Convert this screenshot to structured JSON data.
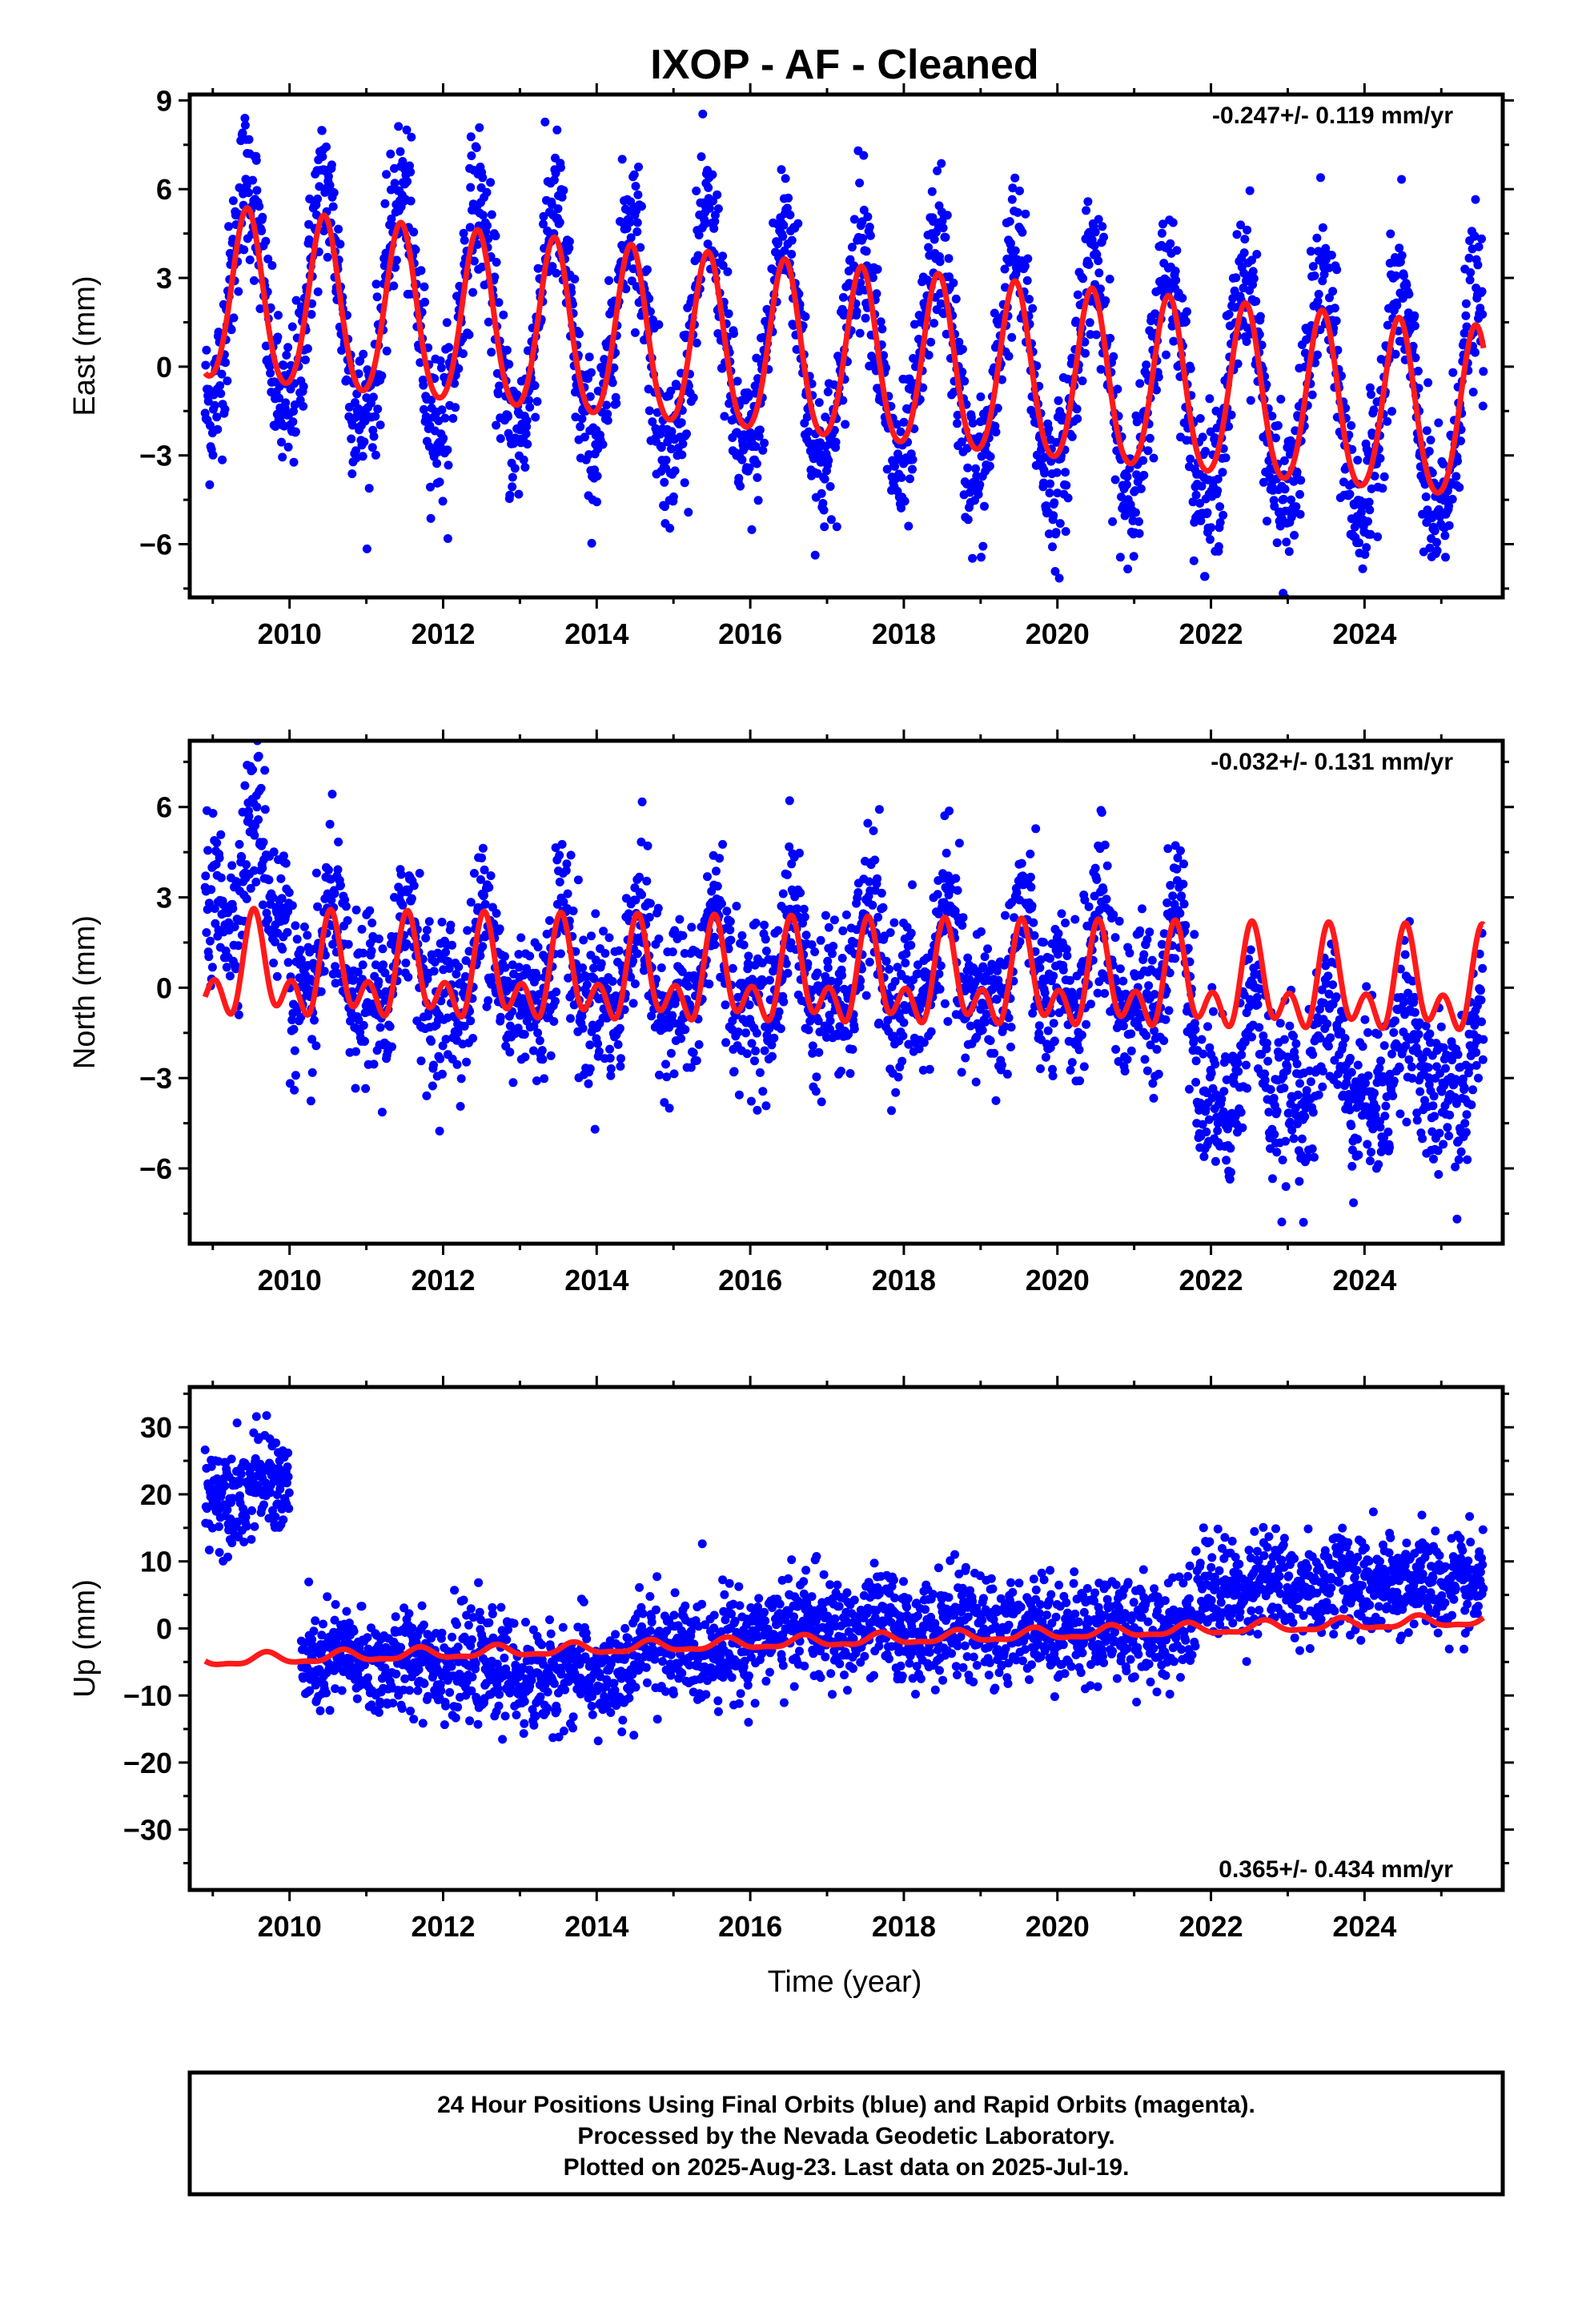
{
  "title": "IXOP  - AF - Cleaned",
  "colors": {
    "points": "#0000ff",
    "fit": "#ff1a1a",
    "frame": "#000000"
  },
  "chart_data": [
    {
      "type": "scatter",
      "ylabel": "East (mm)",
      "rate_label": "-0.247+/- 0.119 mm/yr",
      "xlim": [
        2008.7,
        2025.8
      ],
      "ylim": [
        -7.8,
        9.2
      ],
      "xticks": [
        "2010",
        "2012",
        "2014",
        "2016",
        "2018",
        "2020",
        "2022",
        "2024"
      ],
      "yticks": [
        "9",
        "6",
        "3",
        "0",
        "−3",
        "−6"
      ],
      "ytick_values": [
        9,
        6,
        3,
        0,
        -3,
        -6
      ],
      "x_start": 2008.9,
      "x_end": 2025.55,
      "fit": {
        "offset": 0.3,
        "trend": -0.247,
        "annual_amplitude": 2.9,
        "semiannual_amplitude": 0.3,
        "peak_phase_year": 0.45
      },
      "scatter_std": 1.3,
      "steps": [],
      "series": [
        {
          "values": []
        }
      ]
    },
    {
      "type": "scatter",
      "ylabel": "North (mm)",
      "rate_label": "-0.032+/- 0.131 mm/yr",
      "xlim": [
        2008.7,
        2025.8
      ],
      "ylim": [
        -8.5,
        8.2
      ],
      "xticks": [
        "2010",
        "2012",
        "2014",
        "2016",
        "2018",
        "2020",
        "2022",
        "2024"
      ],
      "yticks": [
        "6",
        "3",
        "0",
        "−3",
        "−6"
      ],
      "ytick_values": [
        6,
        3,
        0,
        -3,
        -6
      ],
      "x_start": 2008.9,
      "x_end": 2025.55,
      "fit": {
        "offset": 0.2,
        "trend": -0.032,
        "annual_amplitude": 1.2,
        "semiannual_amplitude": 0.8,
        "peak_phase_year": 0.55
      },
      "scatter_std": 1.3,
      "steps": [
        {
          "from": 2008.9,
          "to": 2010.0,
          "mean": 3.5
        },
        {
          "from": 2010.0,
          "to": 2021.8,
          "mean": 0.4
        },
        {
          "from": 2021.8,
          "to": 2025.6,
          "mean": -2.8
        }
      ],
      "series": [
        {
          "values": []
        }
      ]
    },
    {
      "type": "scatter",
      "ylabel": "Up (mm)",
      "rate_label": "0.365+/- 0.434 mm/yr",
      "xlabel": "Time (year)",
      "xlim": [
        2008.7,
        2025.8
      ],
      "ylim": [
        -39,
        36
      ],
      "xticks": [
        "2010",
        "2012",
        "2014",
        "2016",
        "2018",
        "2020",
        "2022",
        "2024"
      ],
      "yticks": [
        "30",
        "20",
        "10",
        "0",
        "−10",
        "−20",
        "−30"
      ],
      "ytick_values": [
        30,
        20,
        10,
        0,
        -10,
        -20,
        -30
      ],
      "x_start": 2008.9,
      "x_end": 2025.55,
      "fit": {
        "offset": -1.9,
        "trend": 0.365,
        "annual_amplitude": 0.8,
        "semiannual_amplitude": 0.3,
        "peak_phase_year": 0.7
      },
      "scatter_std": 3.8,
      "steps": [
        {
          "from": 2008.9,
          "to": 2010.15,
          "mean": 21
        },
        {
          "from": 2010.15,
          "to": 2012.5,
          "mean": -5
        },
        {
          "from": 2012.5,
          "to": 2014.5,
          "mean": -7
        },
        {
          "from": 2014.5,
          "to": 2016.0,
          "mean": -3
        },
        {
          "from": 2016.0,
          "to": 2019.0,
          "mean": 0
        },
        {
          "from": 2019.0,
          "to": 2021.8,
          "mean": 0
        },
        {
          "from": 2021.8,
          "to": 2025.6,
          "mean": 6.5
        }
      ],
      "series": [
        {
          "values": []
        }
      ]
    }
  ],
  "footer": {
    "line1": "24 Hour Positions Using Final Orbits (blue) and Rapid Orbits (magenta).",
    "line2": "Processed by the Nevada Geodetic Laboratory.",
    "line3": "Plotted on 2025-Aug-23. Last data on 2025-Jul-19."
  }
}
